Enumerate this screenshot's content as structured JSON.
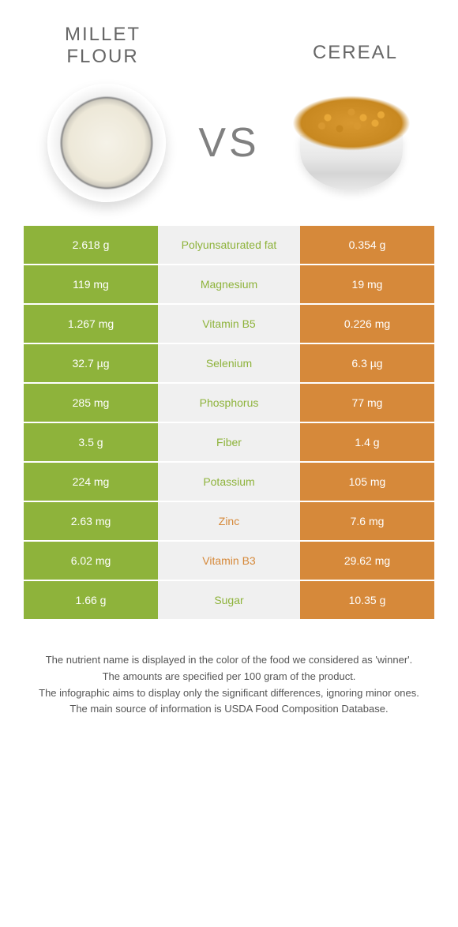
{
  "header": {
    "title_left": "MILLET FLOUR",
    "title_right": "CEREAL",
    "vs_label": "VS"
  },
  "colors": {
    "left": "#8eb33b",
    "right": "#d6893a",
    "row_bg_center": "#f0f0f0",
    "footnote_text": "#555555"
  },
  "table": {
    "rows": [
      {
        "label": "Polyunsaturated fat",
        "left": "2.618 g",
        "right": "0.354 g",
        "winner": "left"
      },
      {
        "label": "Magnesium",
        "left": "119 mg",
        "right": "19 mg",
        "winner": "left"
      },
      {
        "label": "Vitamin B5",
        "left": "1.267 mg",
        "right": "0.226 mg",
        "winner": "left"
      },
      {
        "label": "Selenium",
        "left": "32.7 µg",
        "right": "6.3 µg",
        "winner": "left"
      },
      {
        "label": "Phosphorus",
        "left": "285 mg",
        "right": "77 mg",
        "winner": "left"
      },
      {
        "label": "Fiber",
        "left": "3.5 g",
        "right": "1.4 g",
        "winner": "left"
      },
      {
        "label": "Potassium",
        "left": "224 mg",
        "right": "105 mg",
        "winner": "left"
      },
      {
        "label": "Zinc",
        "left": "2.63 mg",
        "right": "7.6 mg",
        "winner": "right"
      },
      {
        "label": "Vitamin B3",
        "left": "6.02 mg",
        "right": "29.62 mg",
        "winner": "right"
      },
      {
        "label": "Sugar",
        "left": "1.66 g",
        "right": "10.35 g",
        "winner": "left"
      }
    ]
  },
  "footnote": {
    "line1": "The nutrient name is displayed in the color of the food we considered as 'winner'.",
    "line2": "The amounts are specified per 100 gram of the product.",
    "line3": "The infographic aims to display only the significant differences, ignoring minor ones.",
    "line4": "The main source of information is USDA Food Composition Database."
  }
}
